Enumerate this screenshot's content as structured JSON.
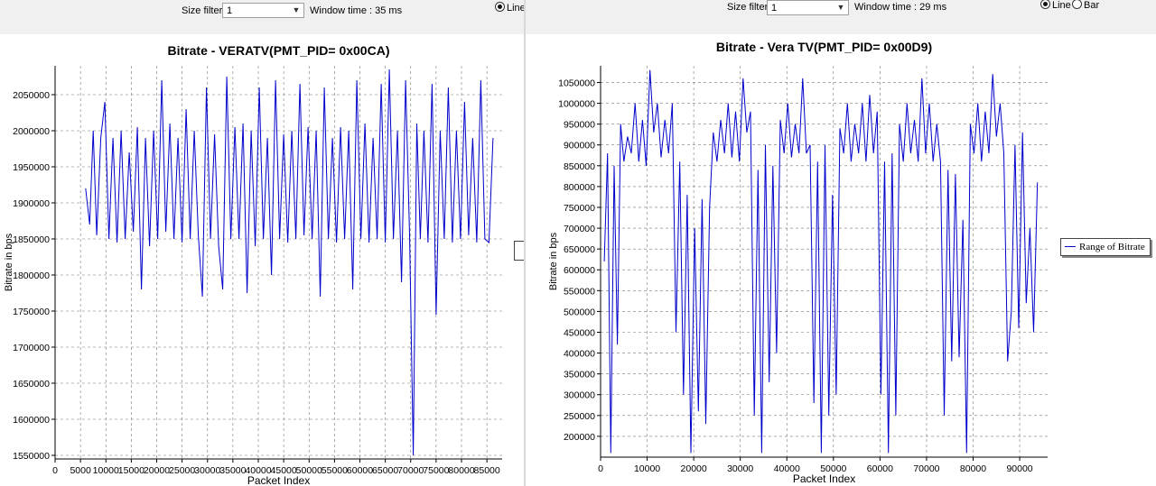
{
  "left": {
    "toolbar": {
      "size_filter_label": "Size filter:",
      "size_filter_value": "1",
      "window_time": "Window time : 35 ms",
      "radio_line": "Line"
    },
    "chart_data": {
      "type": "line",
      "title": "Bitrate - VERATV(PMT_PID= 0x00CA)",
      "xlabel": "Packet Index",
      "ylabel": "Bitrate in bps",
      "xlim": [
        0,
        88000
      ],
      "ylim": [
        1545000,
        2090000
      ],
      "x_ticks": [
        0,
        5000,
        10000,
        15000,
        20000,
        25000,
        30000,
        35000,
        40000,
        45000,
        50000,
        55000,
        60000,
        65000,
        70000,
        75000,
        80000,
        85000
      ],
      "x_tick_labels": [
        "0",
        "5000",
        "10000",
        "15000",
        "20000",
        "25000",
        "30000",
        "35000",
        "40000",
        "45000",
        "50000",
        "55000",
        "60000",
        "65000",
        "70000",
        "75000",
        "80000",
        "85000"
      ],
      "y_ticks": [
        1550000,
        1600000,
        1650000,
        1700000,
        1750000,
        1800000,
        1850000,
        1900000,
        1950000,
        2000000,
        2050000
      ],
      "y_tick_labels": [
        "1550000",
        "1600000",
        "1650000",
        "1700000",
        "1750000",
        "1800000",
        "1850000",
        "1900000",
        "1950000",
        "2000000",
        "2050000"
      ],
      "grid": true,
      "line_color": "#0000cc",
      "series": [
        {
          "values_x": [
            6000,
            6800,
            7500,
            8200,
            9000,
            9800,
            10600,
            11400,
            12200,
            13000,
            13800,
            14600,
            15400,
            16200,
            17000,
            17800,
            18600,
            19400,
            20200,
            21000,
            21800,
            22600,
            23400,
            24200,
            25000,
            25800,
            26600,
            27400,
            28200,
            29000,
            29800,
            30600,
            31400,
            32200,
            33000,
            33800,
            34600,
            35400,
            36200,
            37000,
            37800,
            38600,
            39400,
            40200,
            41000,
            41800,
            42600,
            43400,
            44200,
            45000,
            45800,
            46600,
            47400,
            48200,
            49000,
            49800,
            50600,
            51400,
            52200,
            53000,
            53800,
            54600,
            55400,
            56200,
            57000,
            57800,
            58600,
            59400,
            60200,
            61000,
            61800,
            62600,
            63400,
            64200,
            65000,
            65800,
            66600,
            67400,
            68200,
            69000,
            69800,
            70500,
            71200,
            71900,
            72600,
            73400,
            74200,
            75000,
            75800,
            76600,
            77400,
            78200,
            79000,
            79800,
            80600,
            81400,
            82200,
            83000,
            83800,
            84600,
            85400,
            86200
          ],
          "values_y": [
            1920000,
            1870000,
            2000000,
            1855000,
            1990000,
            2040000,
            1850000,
            1990000,
            1845000,
            2000000,
            1850000,
            1970000,
            1860000,
            2005000,
            1780000,
            1990000,
            1840000,
            2000000,
            1850000,
            2070000,
            1860000,
            2010000,
            1850000,
            1990000,
            1845000,
            2030000,
            1850000,
            2000000,
            1855000,
            1770000,
            2060000,
            1850000,
            1995000,
            1840000,
            1780000,
            2075000,
            1850000,
            2005000,
            1850000,
            2010000,
            1775000,
            2000000,
            1840000,
            2060000,
            1850000,
            1990000,
            1800000,
            2070000,
            1850000,
            1995000,
            1845000,
            2000000,
            1850000,
            2065000,
            1855000,
            2005000,
            1850000,
            2000000,
            1770000,
            2060000,
            1850000,
            1990000,
            1845000,
            2005000,
            1850000,
            2000000,
            1780000,
            2070000,
            1850000,
            2010000,
            1845000,
            1990000,
            1850000,
            2065000,
            1845000,
            2085000,
            1850000,
            2000000,
            1790000,
            2070000,
            1850000,
            1550000,
            2010000,
            1850000,
            2000000,
            1845000,
            2065000,
            1745000,
            2000000,
            1850000,
            2060000,
            1845000,
            2000000,
            1850000,
            2040000,
            1855000,
            1990000,
            1845000,
            2070000,
            1850000,
            1845000,
            1990000
          ]
        }
      ]
    }
  },
  "right": {
    "toolbar": {
      "size_filter_label": "Size filter:",
      "size_filter_value": "1",
      "window_time": "Window time : 29 ms",
      "radio_line": "Line",
      "radio_bar": "Bar"
    },
    "chart_data": {
      "type": "line",
      "title": "Bitrate - Vera TV(PMT_PID= 0x00D9)",
      "xlabel": "Packet Index",
      "ylabel": "Bitrate in bps",
      "xlim": [
        0,
        96000
      ],
      "ylim": [
        150000,
        1090000
      ],
      "x_ticks": [
        0,
        10000,
        20000,
        30000,
        40000,
        50000,
        60000,
        70000,
        80000,
        90000
      ],
      "x_tick_labels": [
        "0",
        "10000",
        "20000",
        "30000",
        "40000",
        "50000",
        "60000",
        "70000",
        "80000",
        "90000"
      ],
      "y_ticks": [
        200000,
        250000,
        300000,
        350000,
        400000,
        450000,
        500000,
        550000,
        600000,
        650000,
        700000,
        750000,
        800000,
        850000,
        900000,
        950000,
        1000000,
        1050000
      ],
      "y_tick_labels": [
        "200000",
        "250000",
        "300000",
        "350000",
        "400000",
        "450000",
        "500000",
        "550000",
        "600000",
        "650000",
        "700000",
        "750000",
        "800000",
        "850000",
        "900000",
        "950000",
        "1000000",
        "1050000"
      ],
      "grid": true,
      "legend": {
        "label": "Range of Bitrate",
        "position": "right"
      },
      "line_color": "#0000cc",
      "series": [
        {
          "name": "Range of Bitrate",
          "values_x": [
            800,
            1500,
            2200,
            2900,
            3600,
            4300,
            5000,
            5800,
            6600,
            7400,
            8200,
            9000,
            9800,
            10600,
            11400,
            12200,
            13000,
            13800,
            14600,
            15400,
            16200,
            17000,
            17800,
            18600,
            19400,
            20200,
            21000,
            21800,
            22600,
            23400,
            24200,
            25000,
            25800,
            26600,
            27400,
            28200,
            29000,
            29800,
            30600,
            31400,
            32200,
            33000,
            33800,
            34600,
            35400,
            36200,
            37000,
            37800,
            38600,
            39400,
            40200,
            41000,
            41800,
            42600,
            43400,
            44200,
            45000,
            45800,
            46600,
            47400,
            48200,
            49000,
            49800,
            50600,
            51400,
            52200,
            53000,
            53800,
            54600,
            55400,
            56200,
            57000,
            57800,
            58600,
            59400,
            60200,
            61000,
            61800,
            62600,
            63400,
            64200,
            65000,
            65800,
            66600,
            67400,
            68200,
            69000,
            69800,
            70600,
            71400,
            72200,
            73000,
            73800,
            74600,
            75400,
            76200,
            77000,
            77800,
            78600,
            79400,
            80200,
            81000,
            81800,
            82600,
            83400,
            84200,
            85000,
            85800,
            86600,
            87400,
            88200,
            89000,
            89800,
            90600,
            91400,
            92200,
            93000,
            93800,
            94600,
            95400
          ],
          "values_y": [
            620000,
            880000,
            160000,
            850000,
            420000,
            950000,
            860000,
            920000,
            880000,
            1000000,
            860000,
            960000,
            850000,
            1080000,
            930000,
            1000000,
            870000,
            960000,
            880000,
            1000000,
            450000,
            860000,
            300000,
            780000,
            160000,
            700000,
            260000,
            770000,
            230000,
            750000,
            930000,
            860000,
            960000,
            880000,
            1000000,
            870000,
            980000,
            860000,
            1060000,
            930000,
            980000,
            250000,
            840000,
            160000,
            900000,
            330000,
            850000,
            400000,
            960000,
            880000,
            1000000,
            870000,
            950000,
            880000,
            1060000,
            880000,
            900000,
            280000,
            860000,
            160000,
            900000,
            250000,
            780000,
            300000,
            940000,
            880000,
            1000000,
            860000,
            950000,
            880000,
            1000000,
            860000,
            1020000,
            880000,
            980000,
            300000,
            860000,
            160000,
            880000,
            250000,
            950000,
            860000,
            1000000,
            880000,
            960000,
            860000,
            1060000,
            880000,
            1000000,
            860000,
            950000,
            860000,
            250000,
            840000,
            380000,
            830000,
            390000,
            720000,
            160000,
            950000,
            880000,
            1000000,
            860000,
            980000,
            880000,
            1070000,
            920000,
            1000000,
            880000,
            380000,
            500000,
            900000,
            460000,
            930000,
            520000,
            700000,
            450000,
            810000
          ]
        }
      ]
    }
  }
}
